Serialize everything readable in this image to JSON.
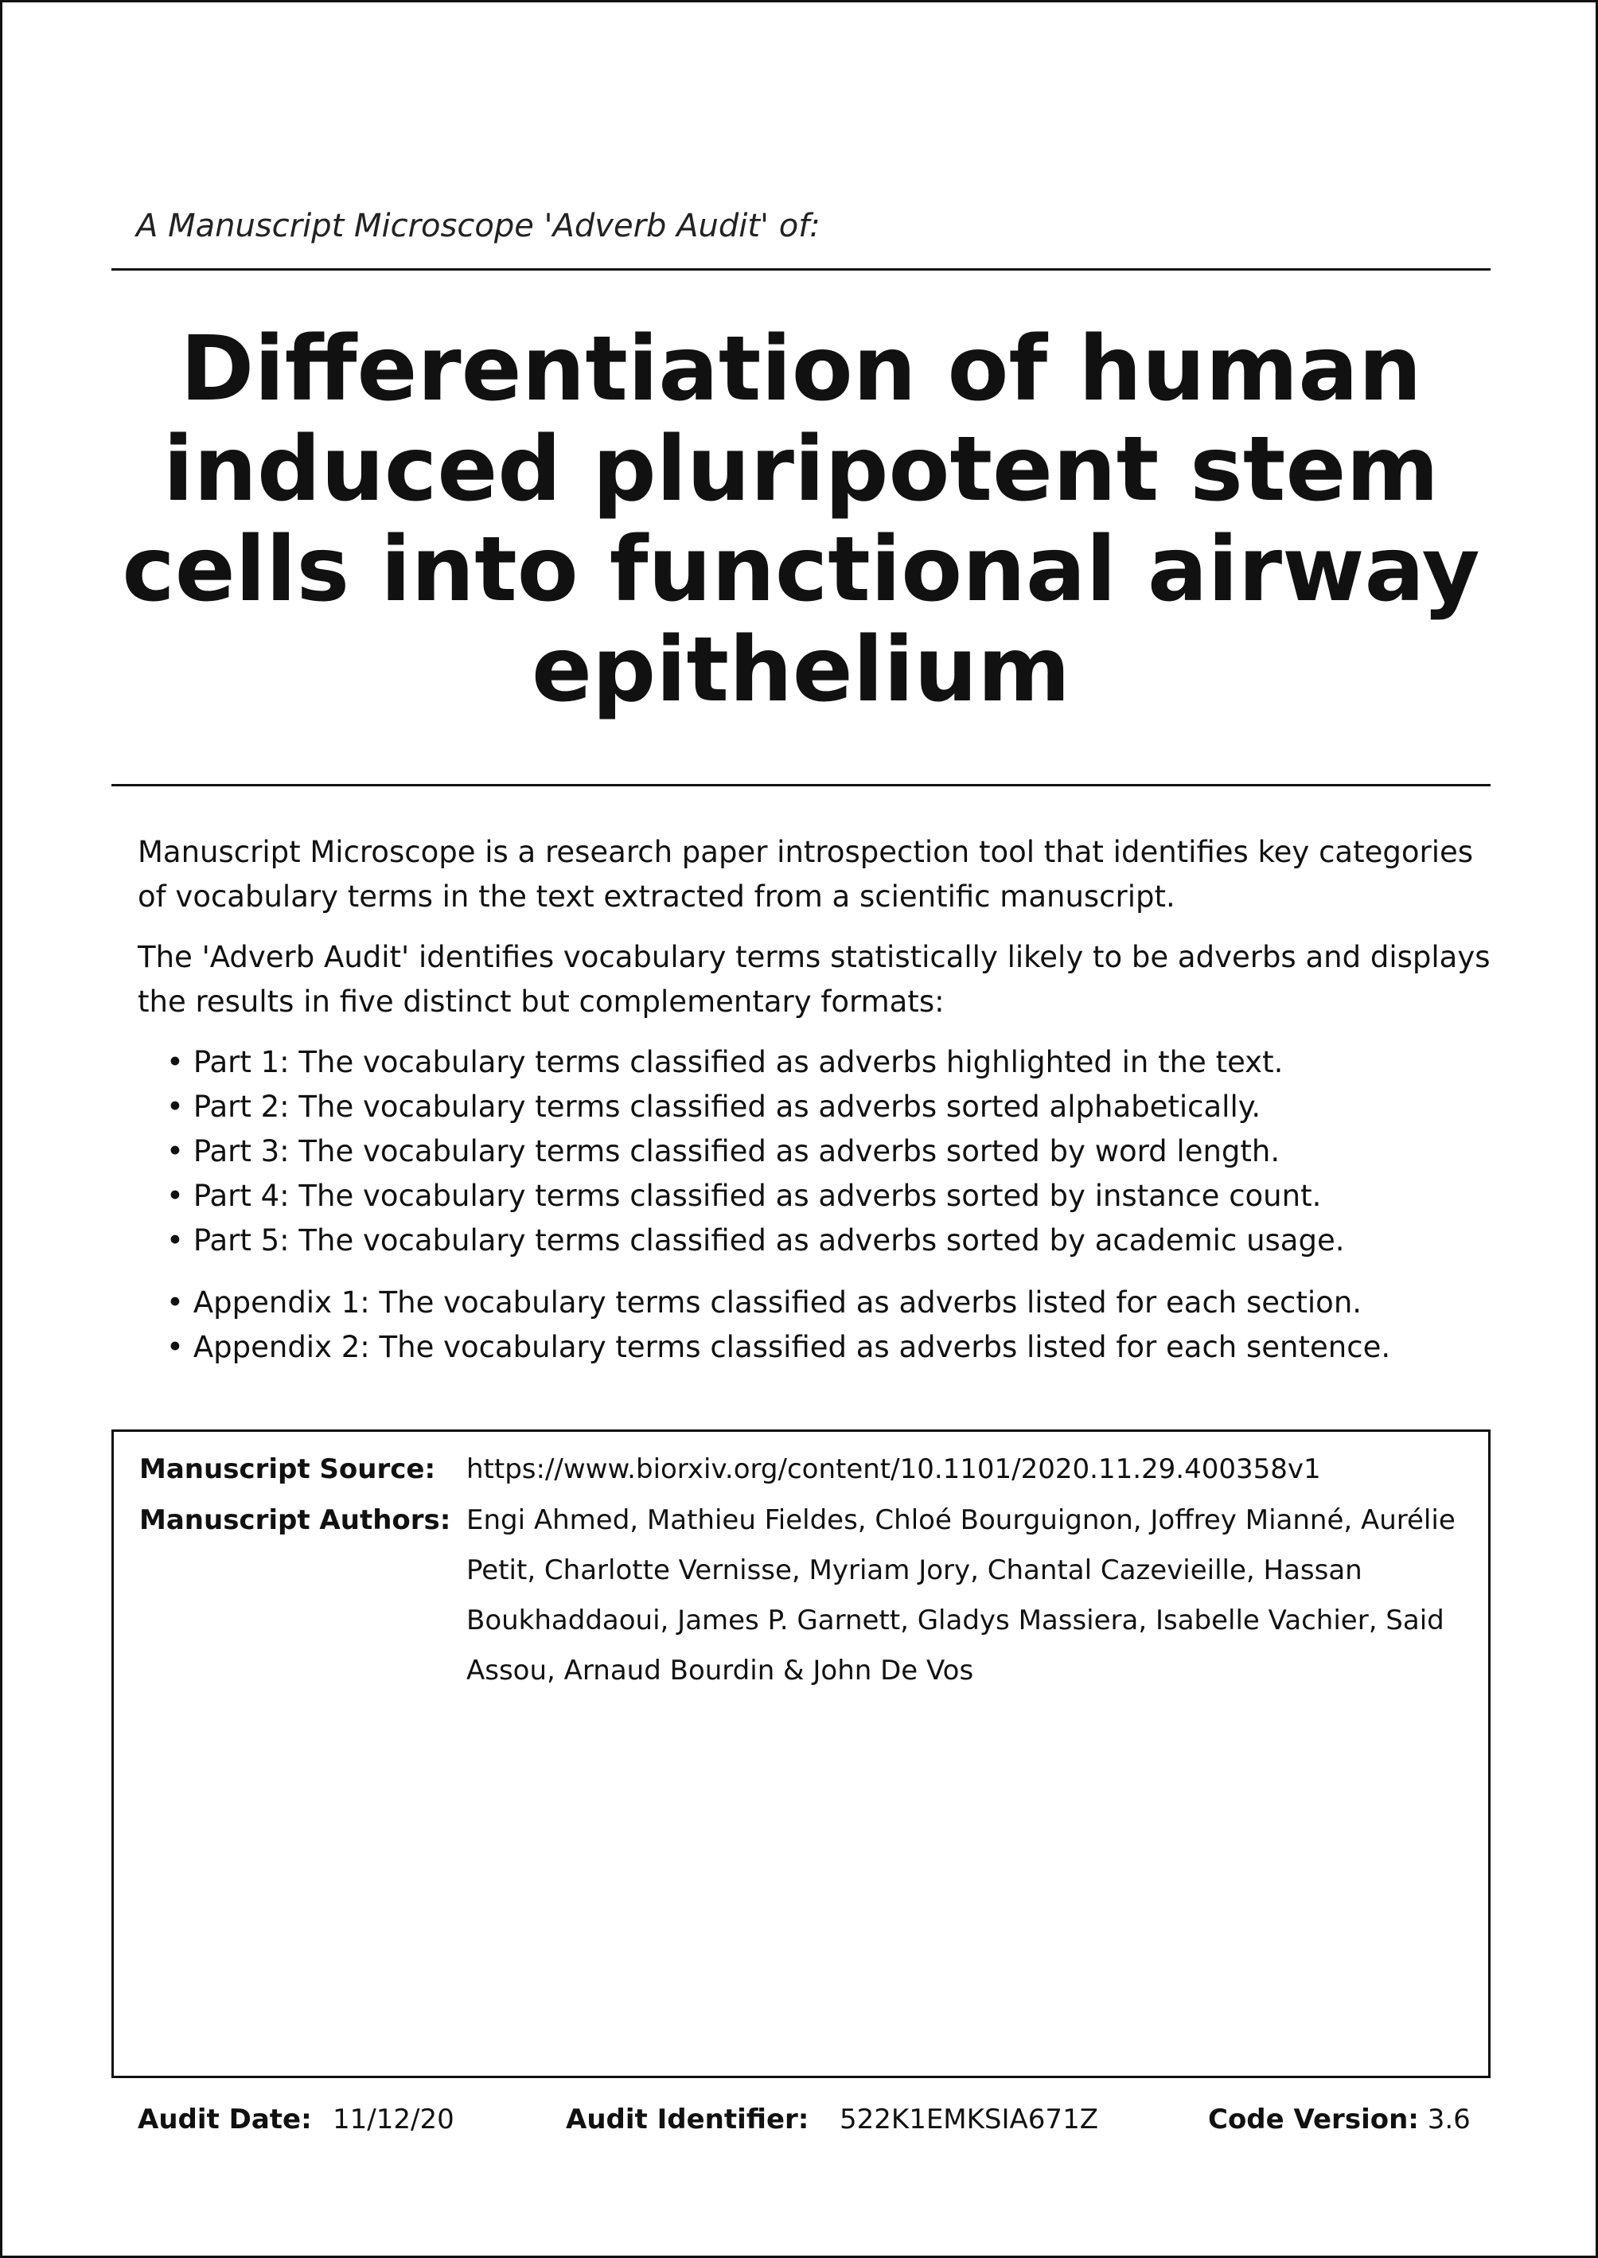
{
  "header": {
    "subtitle": "A Manuscript Microscope 'Adverb Audit' of:",
    "title": "Differentiation of human induced pluripotent stem cells into functional airway epithelium"
  },
  "intro": {
    "paragraph1": "Manuscript Microscope is a research paper introspection tool that identifies key categories of vocabulary terms in the text extracted from a scientific manuscript.",
    "paragraph2": "The 'Adverb Audit' identifies vocabulary terms statistically likely to be adverbs and displays the results in five distinct but complementary formats:",
    "parts": [
      "Part 1: The vocabulary terms classified as adverbs highlighted in the text.",
      "Part 2: The vocabulary terms classified as adverbs sorted alphabetically.",
      "Part 3: The vocabulary terms classified as adverbs sorted by word length.",
      "Part 4: The vocabulary terms classified as adverbs sorted by instance count.",
      "Part 5: The vocabulary terms classified as adverbs sorted by academic usage."
    ],
    "appendices": [
      "Appendix 1: The vocabulary terms classified as adverbs listed for each section.",
      "Appendix 2: The vocabulary terms classified as adverbs listed for each sentence."
    ]
  },
  "info": {
    "source_label": "Manuscript Source:",
    "source_value": "https://www.biorxiv.org/content/10.1101/2020.11.29.400358v1",
    "authors_label": "Manuscript Authors:",
    "authors_value": "Engi Ahmed, Mathieu Fieldes, Chloé Bourguignon, Joffrey Mianné, Aurélie Petit, Charlotte Vernisse, Myriam Jory, Chantal Cazevieille, Hassan Boukhaddaoui, James P. Garnett, Gladys Massiera, Isabelle Vachier, Said Assou, Arnaud Bourdin & John De Vos"
  },
  "footer": {
    "audit_date_label": "Audit Date:",
    "audit_date_value": "11/12/20",
    "audit_id_label": "Audit Identifier:",
    "audit_id_value": "522K1EMKSIA671Z",
    "code_version_label": "Code Version:",
    "code_version_value": "3.6"
  }
}
